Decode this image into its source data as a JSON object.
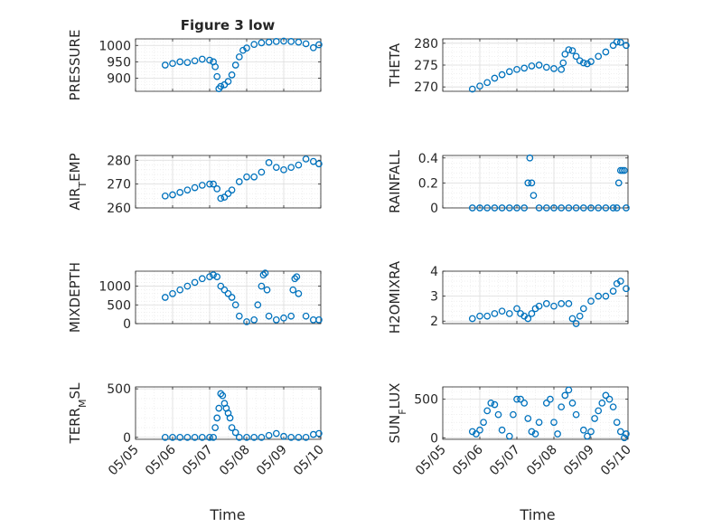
{
  "figure": {
    "title": "Figure 3 low",
    "xlabel": "Time"
  },
  "colors": {
    "marker": "#0072BD",
    "axis": "#262626",
    "grid": "#dcdcdc"
  },
  "x_ticks": [
    "05/05",
    "05/06",
    "05/07",
    "05/08",
    "05/09",
    "05/10"
  ],
  "chart_data": [
    {
      "type": "scatter",
      "ylabel": "PRESSURE",
      "ylim": [
        860,
        1020
      ],
      "yticks": [
        900,
        950,
        1000
      ],
      "x": [
        5.8,
        6.0,
        6.2,
        6.4,
        6.6,
        6.8,
        7.0,
        7.1,
        7.15,
        7.2,
        7.25,
        7.3,
        7.4,
        7.5,
        7.6,
        7.7,
        7.8,
        7.9,
        8.0,
        8.2,
        8.4,
        8.6,
        8.8,
        9.0,
        9.2,
        9.4,
        9.6,
        9.8,
        9.95
      ],
      "y": [
        940,
        945,
        950,
        948,
        953,
        958,
        955,
        950,
        935,
        905,
        868,
        875,
        880,
        890,
        910,
        940,
        965,
        985,
        992,
        1003,
        1008,
        1010,
        1012,
        1013,
        1012,
        1010,
        1005,
        993,
        1002
      ]
    },
    {
      "type": "scatter",
      "ylabel": "THETA",
      "ylim": [
        269,
        281
      ],
      "yticks": [
        270,
        275,
        280
      ],
      "x": [
        5.8,
        6.0,
        6.2,
        6.4,
        6.6,
        6.8,
        7.0,
        7.2,
        7.4,
        7.6,
        7.8,
        8.0,
        8.2,
        8.25,
        8.3,
        8.4,
        8.5,
        8.6,
        8.7,
        8.8,
        8.9,
        9.0,
        9.2,
        9.4,
        9.6,
        9.7,
        9.8,
        9.95
      ],
      "y": [
        269.5,
        270.2,
        271.0,
        272.0,
        272.8,
        273.5,
        274.0,
        274.3,
        274.8,
        275.0,
        274.5,
        274.2,
        274.0,
        275.5,
        277.5,
        278.5,
        278.3,
        277.0,
        276.0,
        275.5,
        275.3,
        275.8,
        277.0,
        278.0,
        279.5,
        280.3,
        280.2,
        279.5
      ]
    },
    {
      "type": "scatter",
      "ylabel": "AIR_TEMP",
      "ylim": [
        260,
        282
      ],
      "yticks": [
        260,
        270,
        280
      ],
      "x": [
        5.8,
        6.0,
        6.2,
        6.4,
        6.6,
        6.8,
        7.0,
        7.1,
        7.2,
        7.3,
        7.4,
        7.5,
        7.6,
        7.8,
        8.0,
        8.2,
        8.4,
        8.6,
        8.8,
        9.0,
        9.2,
        9.4,
        9.6,
        9.8,
        9.95
      ],
      "y": [
        265,
        265.5,
        266.5,
        267.5,
        268.5,
        269.5,
        270,
        270,
        268,
        264,
        264.5,
        266,
        267.5,
        271,
        273,
        273,
        275,
        279,
        277,
        276,
        277,
        278,
        280.5,
        279.5,
        278.5
      ]
    },
    {
      "type": "scatter",
      "ylabel": "RAINFALL",
      "ylim": [
        0,
        0.42
      ],
      "yticks": [
        0,
        0.2,
        0.4
      ],
      "x": [
        5.8,
        6.0,
        6.2,
        6.4,
        6.6,
        6.8,
        7.0,
        7.2,
        7.3,
        7.35,
        7.4,
        7.45,
        7.6,
        7.8,
        8.0,
        8.2,
        8.4,
        8.6,
        8.8,
        9.0,
        9.2,
        9.4,
        9.6,
        9.7,
        9.75,
        9.8,
        9.85,
        9.9,
        9.95
      ],
      "y": [
        0,
        0,
        0,
        0,
        0,
        0,
        0,
        0,
        0.2,
        0.4,
        0.2,
        0.1,
        0,
        0,
        0,
        0,
        0,
        0,
        0,
        0,
        0,
        0,
        0,
        0,
        0.2,
        0.3,
        0.3,
        0.3,
        0
      ]
    },
    {
      "type": "scatter",
      "ylabel": "MIXDEPTH",
      "ylim": [
        0,
        1400
      ],
      "yticks": [
        0,
        500,
        1000
      ],
      "x": [
        5.8,
        6.0,
        6.2,
        6.4,
        6.6,
        6.8,
        7.0,
        7.1,
        7.2,
        7.3,
        7.4,
        7.5,
        7.6,
        7.7,
        7.8,
        8.0,
        8.2,
        8.3,
        8.4,
        8.45,
        8.5,
        8.55,
        8.6,
        8.8,
        9.0,
        9.2,
        9.25,
        9.3,
        9.35,
        9.4,
        9.6,
        9.8,
        9.95
      ],
      "y": [
        700,
        800,
        900,
        1000,
        1100,
        1200,
        1250,
        1300,
        1250,
        1000,
        900,
        800,
        700,
        500,
        200,
        50,
        100,
        500,
        1000,
        1300,
        1350,
        900,
        200,
        100,
        150,
        200,
        900,
        1200,
        1250,
        800,
        200,
        100,
        100
      ]
    },
    {
      "type": "scatter",
      "ylabel": "H2OMIXRA",
      "ylim": [
        1.9,
        4.0
      ],
      "yticks": [
        2,
        3,
        4
      ],
      "x": [
        5.8,
        6.0,
        6.2,
        6.4,
        6.6,
        6.8,
        7.0,
        7.1,
        7.2,
        7.3,
        7.4,
        7.5,
        7.6,
        7.8,
        8.0,
        8.2,
        8.4,
        8.5,
        8.6,
        8.7,
        8.8,
        9.0,
        9.2,
        9.4,
        9.6,
        9.7,
        9.8,
        9.95
      ],
      "y": [
        2.1,
        2.2,
        2.2,
        2.3,
        2.4,
        2.3,
        2.5,
        2.3,
        2.2,
        2.1,
        2.3,
        2.5,
        2.6,
        2.7,
        2.6,
        2.7,
        2.7,
        2.1,
        1.9,
        2.2,
        2.5,
        2.8,
        3.0,
        3.0,
        3.2,
        3.5,
        3.6,
        3.3
      ]
    },
    {
      "type": "scatter",
      "ylabel": "TERR_MSL",
      "ylim": [
        -20,
        520
      ],
      "yticks": [
        0,
        500
      ],
      "x": [
        5.8,
        6.0,
        6.2,
        6.4,
        6.6,
        6.8,
        7.0,
        7.1,
        7.15,
        7.2,
        7.25,
        7.3,
        7.35,
        7.4,
        7.45,
        7.5,
        7.55,
        7.6,
        7.7,
        7.8,
        8.0,
        8.2,
        8.4,
        8.6,
        8.8,
        9.0,
        9.2,
        9.4,
        9.6,
        9.8,
        9.95
      ],
      "y": [
        0,
        0,
        0,
        0,
        0,
        0,
        0,
        0,
        100,
        200,
        300,
        450,
        430,
        350,
        300,
        250,
        200,
        100,
        50,
        0,
        0,
        0,
        0,
        20,
        40,
        10,
        0,
        0,
        0,
        30,
        40
      ]
    },
    {
      "type": "scatter",
      "ylabel": "SUN_FLUX",
      "ylim": [
        -20,
        660
      ],
      "yticks": [
        0,
        500
      ],
      "x": [
        5.8,
        5.9,
        6.0,
        6.1,
        6.2,
        6.3,
        6.4,
        6.5,
        6.6,
        6.8,
        6.9,
        7.0,
        7.1,
        7.2,
        7.3,
        7.4,
        7.5,
        7.6,
        7.8,
        7.9,
        8.0,
        8.1,
        8.2,
        8.3,
        8.4,
        8.5,
        8.6,
        8.8,
        8.9,
        9.0,
        9.1,
        9.2,
        9.3,
        9.4,
        9.5,
        9.6,
        9.7,
        9.8,
        9.9,
        9.95
      ],
      "y": [
        80,
        50,
        100,
        200,
        350,
        450,
        430,
        300,
        100,
        20,
        300,
        500,
        500,
        450,
        250,
        80,
        50,
        200,
        450,
        500,
        200,
        50,
        400,
        550,
        620,
        450,
        300,
        100,
        20,
        80,
        250,
        350,
        450,
        550,
        500,
        400,
        200,
        80,
        0,
        50
      ]
    }
  ],
  "ylabel_display": {
    "AIR_TEMP": {
      "pre": "AIR",
      "sub": "T",
      "post": "EMP"
    },
    "TERR_MSL": {
      "pre": "TERR",
      "sub": "M",
      "post": "SL"
    },
    "SUN_FLUX": {
      "pre": "SUN",
      "sub": "F",
      "post": "LUX"
    }
  }
}
